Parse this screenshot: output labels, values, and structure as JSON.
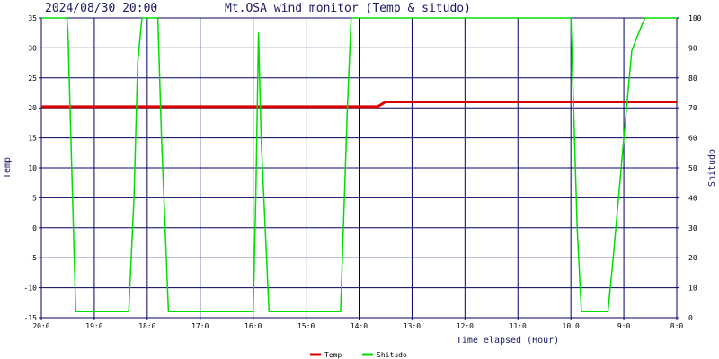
{
  "header": {
    "timestamp": "2024/08/30 20:00",
    "title": "Mt.OSA wind monitor (Temp & situdo)"
  },
  "chart_data": {
    "type": "line",
    "xlabel": "Time elapsed (Hour)",
    "ylabel_left": "Temp",
    "ylabel_right": "Shitudo",
    "x_range_hours_elapsed": [
      0,
      12
    ],
    "x_ticks": [
      {
        "label": "20:0",
        "x": 0
      },
      {
        "label": "19:0",
        "x": 1
      },
      {
        "label": "18:0",
        "x": 2
      },
      {
        "label": "17:0",
        "x": 3
      },
      {
        "label": "16:0",
        "x": 4
      },
      {
        "label": "15:0",
        "x": 5
      },
      {
        "label": "14:0",
        "x": 6
      },
      {
        "label": "13:0",
        "x": 7
      },
      {
        "label": "12:0",
        "x": 8
      },
      {
        "label": "11:0",
        "x": 9
      },
      {
        "label": "10:0",
        "x": 10
      },
      {
        "label": "9:0",
        "x": 11
      },
      {
        "label": "8:0",
        "x": 12
      }
    ],
    "y_left": {
      "min": -15,
      "max": 35,
      "ticks": [
        35,
        30,
        25,
        20,
        15,
        10,
        5,
        0,
        -5,
        -10,
        -15
      ]
    },
    "y_right": {
      "min": 0,
      "max": 100,
      "ticks": [
        100,
        90,
        80,
        70,
        60,
        50,
        40,
        30,
        20,
        10,
        0
      ]
    },
    "grid": true,
    "legend_position": "bottom-center",
    "series": [
      {
        "name": "Temp",
        "axis": "left",
        "color": "#dd0000",
        "points": [
          [
            0,
            20.2
          ],
          [
            6.35,
            20.2
          ],
          [
            6.5,
            21.0
          ],
          [
            12,
            21.0
          ]
        ]
      },
      {
        "name": "Shitudo",
        "axis": "right",
        "color": "#00dd00",
        "points": [
          [
            0,
            100
          ],
          [
            0.48,
            100
          ],
          [
            0.5,
            96
          ],
          [
            0.65,
            2
          ],
          [
            1.65,
            2
          ],
          [
            1.75,
            40
          ],
          [
            1.82,
            85
          ],
          [
            1.9,
            100
          ],
          [
            2.2,
            100
          ],
          [
            2.27,
            60
          ],
          [
            2.4,
            2
          ],
          [
            4.0,
            2
          ],
          [
            4.05,
            40
          ],
          [
            4.1,
            95
          ],
          [
            4.15,
            60
          ],
          [
            4.3,
            2
          ],
          [
            5.65,
            2
          ],
          [
            5.78,
            70
          ],
          [
            5.85,
            100
          ],
          [
            10.0,
            100
          ],
          [
            10.12,
            30
          ],
          [
            10.2,
            2
          ],
          [
            10.7,
            2
          ],
          [
            10.8,
            20
          ],
          [
            11.0,
            60
          ],
          [
            11.15,
            89
          ],
          [
            11.3,
            96
          ],
          [
            11.4,
            100
          ],
          [
            12,
            100
          ]
        ]
      }
    ]
  }
}
